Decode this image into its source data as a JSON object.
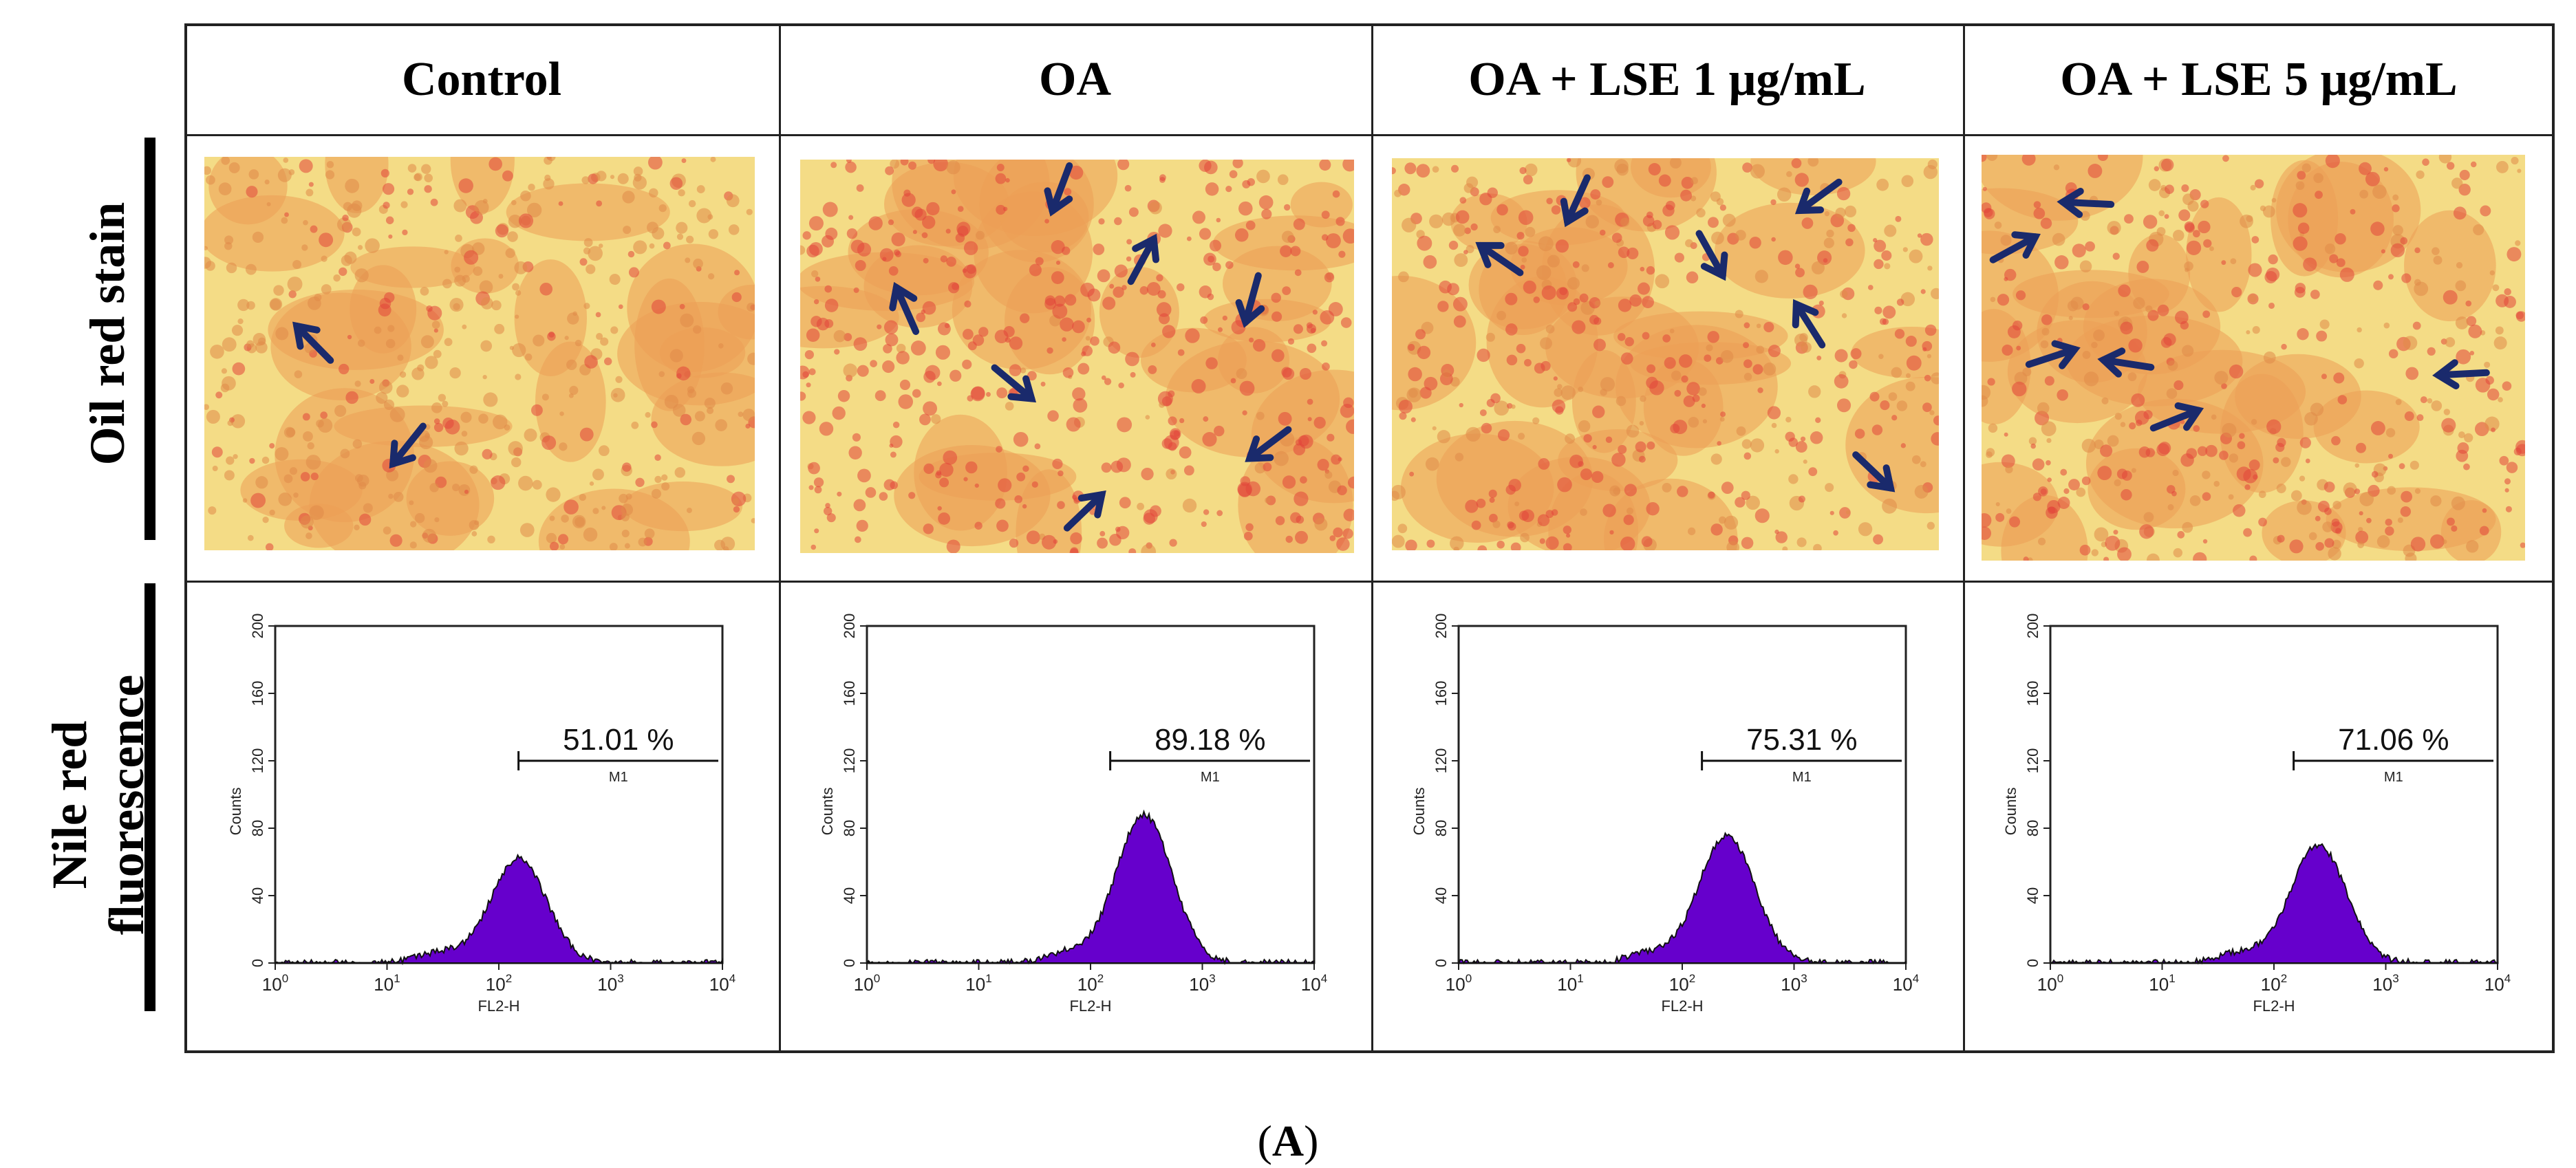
{
  "columns": [
    "Control",
    "OA",
    "OA + LSE 1 μg/mL",
    "OA + LSE 5 μg/mL"
  ],
  "rows": {
    "oil_red": "Oil red stain",
    "nile_red_line1": "Nile red",
    "nile_red_line2": "fluorescence"
  },
  "caption": {
    "open": "(",
    "letter": "A",
    "close": ")"
  },
  "micrographs": [
    {
      "name": "Control",
      "arrows": 2
    },
    {
      "name": "OA",
      "arrows": 7
    },
    {
      "name": "OA + LSE 1 μg/mL",
      "arrows": 6
    },
    {
      "name": "OA + LSE 5 μg/mL",
      "arrows": 6
    }
  ],
  "chart_data": [
    {
      "type": "histogram",
      "panel": "Control",
      "xlabel": "FL2-H",
      "ylabel": "Counts",
      "xscale": "log",
      "xlim": [
        1,
        10000
      ],
      "ylim": [
        0,
        200
      ],
      "yticks": [
        0,
        40,
        80,
        120,
        160,
        200
      ],
      "xticks": [
        "10^0",
        "10^1",
        "10^2",
        "10^3",
        "10^4"
      ],
      "marker": {
        "label": "M1",
        "range": [
          150,
          10000
        ],
        "percent": "51.01 %"
      },
      "peak": {
        "x": 150,
        "counts": 62
      },
      "color": "#6600cc"
    },
    {
      "type": "histogram",
      "panel": "OA",
      "xlabel": "FL2-H",
      "ylabel": "Counts",
      "xscale": "log",
      "xlim": [
        1,
        10000
      ],
      "ylim": [
        0,
        200
      ],
      "yticks": [
        0,
        40,
        80,
        120,
        160,
        200
      ],
      "xticks": [
        "10^0",
        "10^1",
        "10^2",
        "10^3",
        "10^4"
      ],
      "marker": {
        "label": "M1",
        "range": [
          150,
          10000
        ],
        "percent": "89.18 %"
      },
      "peak": {
        "x": 300,
        "counts": 88
      },
      "color": "#6600cc"
    },
    {
      "type": "histogram",
      "panel": "OA + LSE 1 μg/mL",
      "xlabel": "FL2-H",
      "ylabel": "Counts",
      "xscale": "log",
      "xlim": [
        1,
        10000
      ],
      "ylim": [
        0,
        200
      ],
      "yticks": [
        0,
        40,
        80,
        120,
        160,
        200
      ],
      "xticks": [
        "10^0",
        "10^1",
        "10^2",
        "10^3",
        "10^4"
      ],
      "marker": {
        "label": "M1",
        "range": [
          150,
          10000
        ],
        "percent": "75.31 %"
      },
      "peak": {
        "x": 250,
        "counts": 76
      },
      "color": "#6600cc"
    },
    {
      "type": "histogram",
      "panel": "OA + LSE 5 μg/mL",
      "xlabel": "FL2-H",
      "ylabel": "Counts",
      "xscale": "log",
      "xlim": [
        1,
        10000
      ],
      "ylim": [
        0,
        200
      ],
      "yticks": [
        0,
        40,
        80,
        120,
        160,
        200
      ],
      "xticks": [
        "10^0",
        "10^1",
        "10^2",
        "10^3",
        "10^4"
      ],
      "marker": {
        "label": "M1",
        "range": [
          150,
          10000
        ],
        "percent": "71.06 %"
      },
      "peak": {
        "x": 250,
        "counts": 70
      },
      "color": "#6600cc"
    }
  ]
}
